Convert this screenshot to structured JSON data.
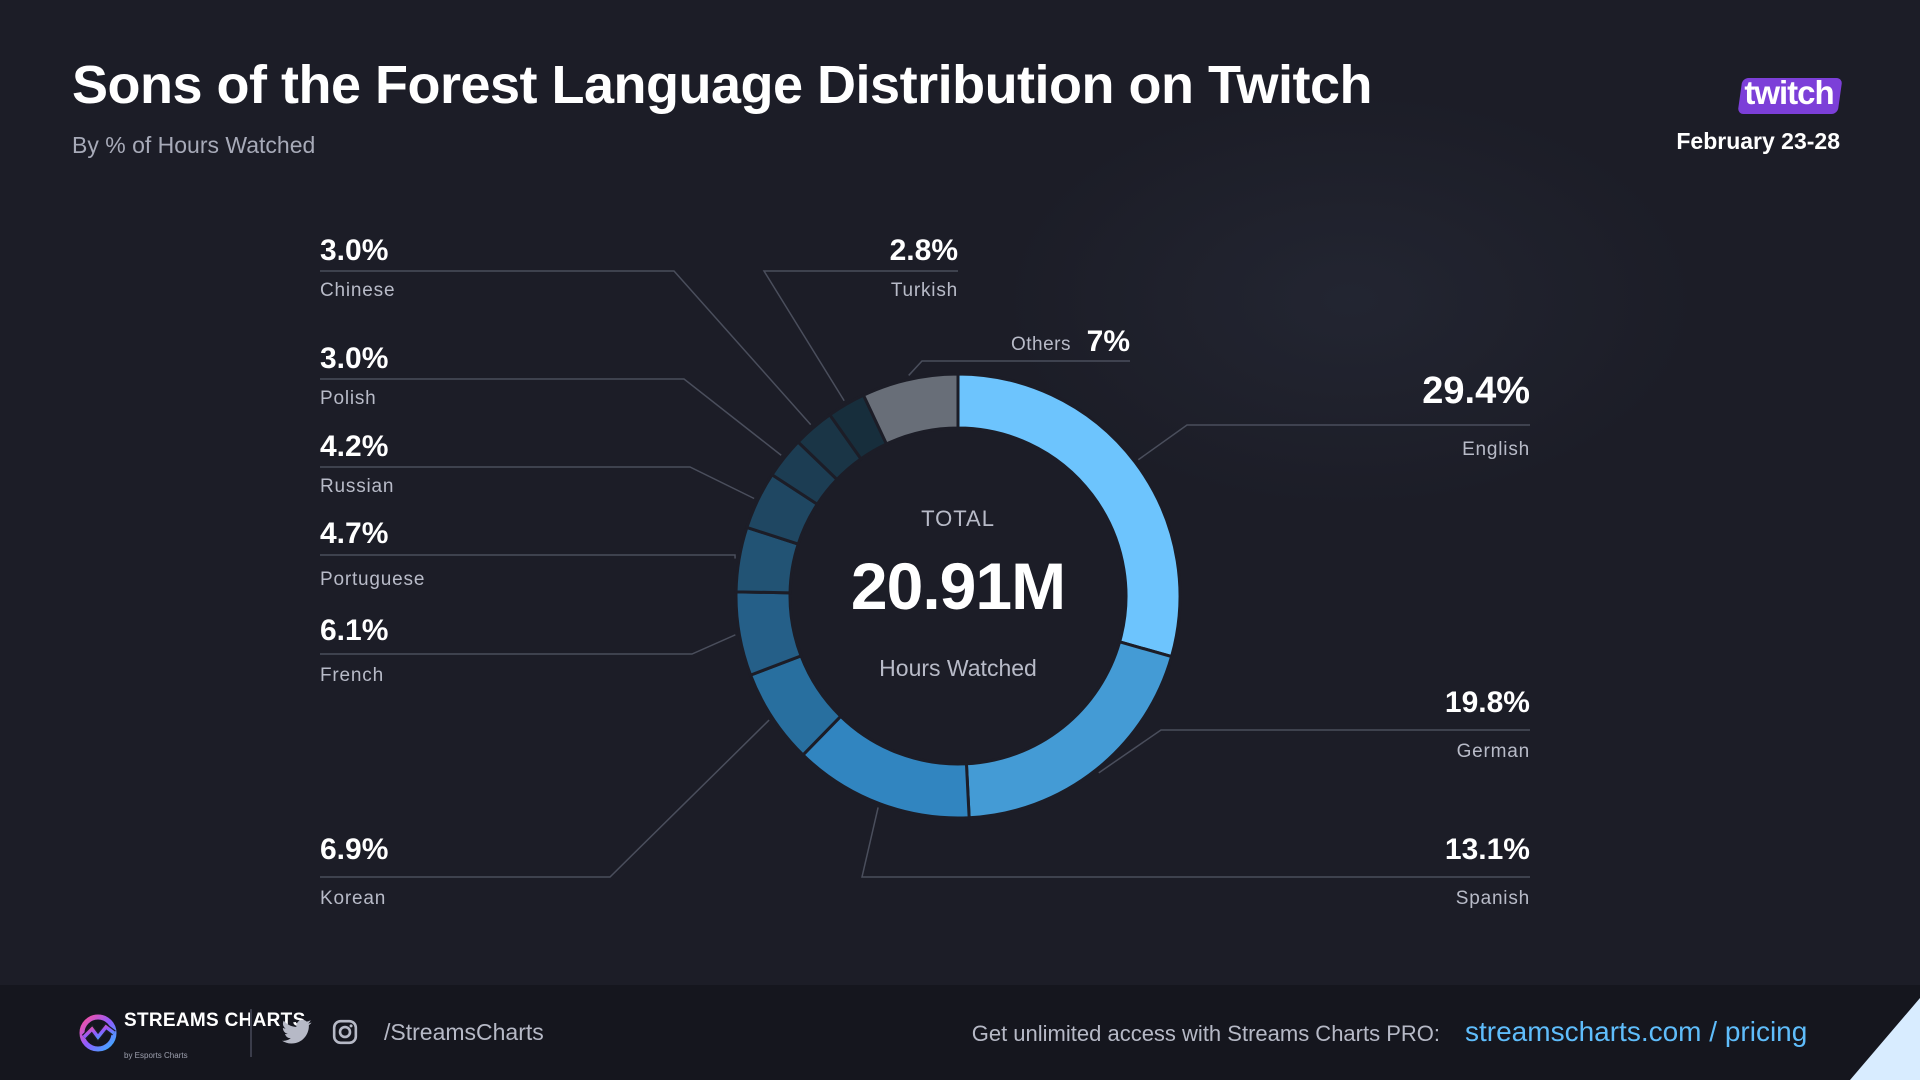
{
  "header": {
    "title": "Sons of the Forest Language Distribution on Twitch",
    "subtitle": "By % of Hours Watched",
    "platform_logo_text": "twitch",
    "date_range": "February 23-28"
  },
  "chart_data": {
    "type": "pie",
    "subtype": "donut",
    "title": "Sons of the Forest Language Distribution on Twitch",
    "subtitle": "By % of Hours Watched",
    "center": {
      "top_label": "TOTAL",
      "value": "20.91M",
      "bottom_label": "Hours Watched"
    },
    "slices": [
      {
        "label": "English",
        "value": 29.4,
        "display": "29.4%",
        "color": "#6dc4fd"
      },
      {
        "label": "German",
        "value": 19.8,
        "display": "19.8%",
        "color": "#449bd5"
      },
      {
        "label": "Spanish",
        "value": 13.1,
        "display": "13.1%",
        "color": "#3185c0"
      },
      {
        "label": "Korean",
        "value": 6.9,
        "display": "6.9%",
        "color": "#286f9f"
      },
      {
        "label": "French",
        "value": 6.1,
        "display": "6.1%",
        "color": "#255f88"
      },
      {
        "label": "Portuguese",
        "value": 4.7,
        "display": "4.7%",
        "color": "#225374"
      },
      {
        "label": "Russian",
        "value": 4.2,
        "display": "4.2%",
        "color": "#1f4762"
      },
      {
        "label": "Polish",
        "value": 3.0,
        "display": "3.0%",
        "color": "#1c3d53"
      },
      {
        "label": "Chinese",
        "value": 3.0,
        "display": "3.0%",
        "color": "#1a3546"
      },
      {
        "label": "Turkish",
        "value": 2.8,
        "display": "2.8%",
        "color": "#172e3c"
      },
      {
        "label": "Others",
        "value": 7,
        "display": "7%",
        "color": "#686e78"
      }
    ]
  },
  "footer": {
    "logo_text": "STREAMS CHARTS",
    "logo_subtext": "by Esports Charts",
    "social_handle": "/StreamsCharts",
    "promo_text": "Get unlimited access with Streams Charts PRO:",
    "promo_link": "streamscharts.com / pricing"
  },
  "colors": {
    "background": "#1c1d27",
    "footer_background": "#15161e",
    "accent": "#5fbdfb",
    "twitch_purple": "#7c3fd8",
    "leader_line": "#4a4e5c"
  }
}
